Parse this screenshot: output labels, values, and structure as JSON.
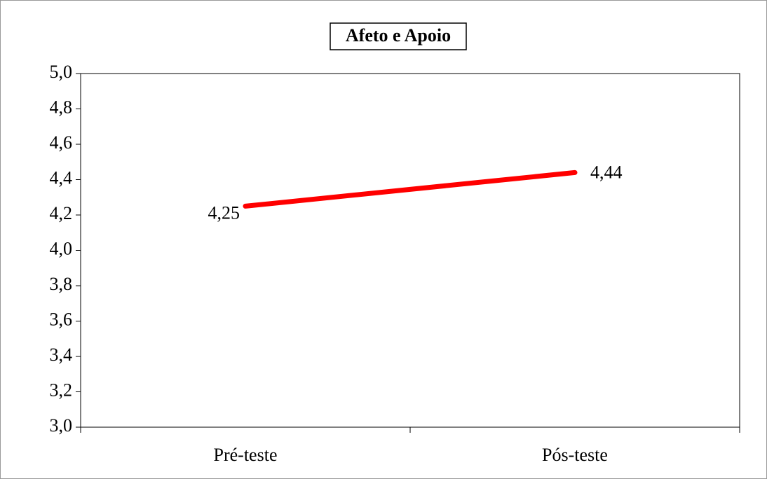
{
  "chart_data": {
    "type": "line",
    "title": "Afeto e Apoio",
    "categories": [
      "Pré-teste",
      "Pós-teste"
    ],
    "series": [
      {
        "name": "Afeto e Apoio",
        "color": "#ff0000",
        "values": [
          4.25,
          4.44
        ],
        "value_labels": [
          "4,25",
          "4,44"
        ]
      }
    ],
    "ylim": [
      3.0,
      5.0
    ],
    "yticks": [
      {
        "value": 3.0,
        "label": "3,0"
      },
      {
        "value": 3.2,
        "label": "3,2"
      },
      {
        "value": 3.4,
        "label": "3,4"
      },
      {
        "value": 3.6,
        "label": "3,6"
      },
      {
        "value": 3.8,
        "label": "3,8"
      },
      {
        "value": 4.0,
        "label": "4,0"
      },
      {
        "value": 4.2,
        "label": "4,2"
      },
      {
        "value": 4.4,
        "label": "4,4"
      },
      {
        "value": 4.6,
        "label": "4,6"
      },
      {
        "value": 4.8,
        "label": "4,8"
      },
      {
        "value": 5.0,
        "label": "5,0"
      }
    ],
    "grid": false
  }
}
